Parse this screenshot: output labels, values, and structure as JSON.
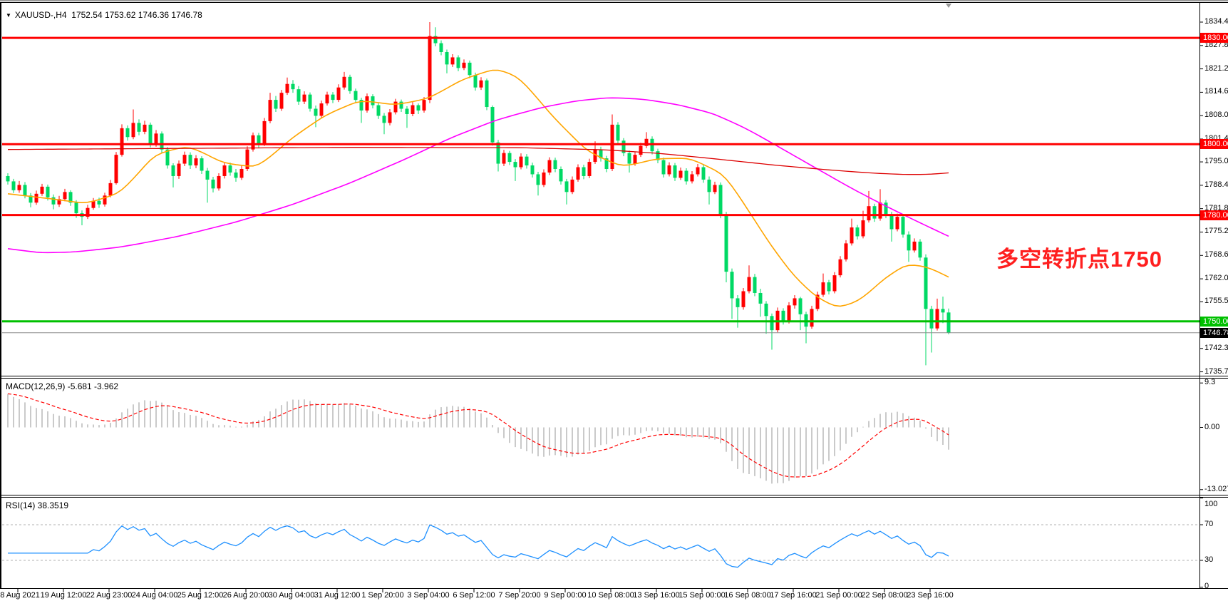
{
  "title": {
    "symbol": "XAUUSD-,H4",
    "quotes": "1752.54 1753.62 1746.36 1746.78"
  },
  "icons": {
    "symbol_dropdown": "▼",
    "shift_marker": "▼"
  },
  "annotation": {
    "text": "多空转折点1750",
    "color": "#FF1F1F"
  },
  "colors": {
    "bull": "#FF0000",
    "bear": "#00D964",
    "ma_fast": "#FFA500",
    "ma_mid": "#FF00FF",
    "ma_slow": "#DD0000",
    "hline_red": "#FF0000",
    "hline_green": "#00C000",
    "current_line": "#888888",
    "current_label_bg": "#000000",
    "macd_hist": "#BDBDBD",
    "macd_signal": "#FF0000",
    "rsi_line": "#1E90FF",
    "rsi_levels": "#B0B0B0"
  },
  "price_axis": {
    "ticks": [
      {
        "v": 1834.45,
        "t": "1834.45"
      },
      {
        "v": 1827.85,
        "t": "1827.85"
      },
      {
        "v": 1821.25,
        "t": "1821.25"
      },
      {
        "v": 1814.65,
        "t": "1814.65"
      },
      {
        "v": 1808.05,
        "t": "1808.05"
      },
      {
        "v": 1801.45,
        "t": "1801.45"
      },
      {
        "v": 1795.0,
        "t": "1795.00"
      },
      {
        "v": 1788.4,
        "t": "1788.40"
      },
      {
        "v": 1781.8,
        "t": "1781.80"
      },
      {
        "v": 1775.2,
        "t": "1775.20"
      },
      {
        "v": 1768.6,
        "t": "1768.60"
      },
      {
        "v": 1762.0,
        "t": "1762.00"
      },
      {
        "v": 1755.55,
        "t": "1755.55"
      },
      {
        "v": 1748.95,
        "t": "1748.95"
      },
      {
        "v": 1742.35,
        "t": "1742.35"
      },
      {
        "v": 1735.75,
        "t": "1735.75"
      }
    ],
    "current_price": {
      "v": 1746.78,
      "t": "1746.78"
    }
  },
  "time_axis": {
    "labels": [
      "18 Aug 2021",
      "19 Aug 12:00",
      "22 Aug 23:00",
      "24 Aug 04:00",
      "25 Aug 12:00",
      "26 Aug 20:00",
      "30 Aug 04:00",
      "31 Aug 12:00",
      "1 Sep 20:00",
      "3 Sep 04:00",
      "6 Sep 12:00",
      "7 Sep 20:00",
      "9 Sep 00:00",
      "10 Sep 08:00",
      "13 Sep 16:00",
      "15 Sep 00:00",
      "16 Sep 08:00",
      "17 Sep 16:00",
      "21 Sep 00:00",
      "22 Sep 08:00",
      "23 Sep 16:00"
    ]
  },
  "indicators": {
    "macd": {
      "label": "MACD(12,26,9) -5.681 -3.962",
      "value": -5.681,
      "signal_value": -3.962,
      "axis": [
        {
          "v": 9.3,
          "t": "9.3"
        },
        {
          "v": 0,
          "t": "0.00"
        },
        {
          "v": -13.027,
          "t": "-13.027"
        }
      ]
    },
    "rsi": {
      "label": "RSI(14) 38.3519",
      "value": 38.3519,
      "levels": [
        70,
        30
      ],
      "axis": [
        {
          "v": 100,
          "t": "100"
        },
        {
          "v": 70,
          "t": "70"
        },
        {
          "v": 30,
          "t": "30"
        },
        {
          "v": 0,
          "t": "0"
        }
      ]
    }
  },
  "chart_data": {
    "type": "candlestick",
    "symbol": "XAUUSD",
    "timeframe": "H4",
    "title": "XAUUSD-,H4",
    "color_convention": "chinese: red = bullish, green = bearish",
    "ylim": [
      1735.75,
      1834.45
    ],
    "grid": false,
    "open_rule": "previous_close",
    "first_open": 1791.0,
    "candles_hlc": [
      [
        1791.8,
        1788.6,
        1789.5
      ],
      [
        1790.2,
        1786.2,
        1787.0
      ],
      [
        1789.6,
        1786.3,
        1788.5
      ],
      [
        1789.3,
        1784.7,
        1785.5
      ],
      [
        1786.2,
        1782.2,
        1783.5
      ],
      [
        1786.9,
        1782.9,
        1786.0
      ],
      [
        1788.8,
        1785.4,
        1788.0
      ],
      [
        1788.6,
        1784.1,
        1785.0
      ],
      [
        1785.8,
        1781.6,
        1783.0
      ],
      [
        1785.4,
        1782.3,
        1784.5
      ],
      [
        1787.4,
        1783.9,
        1786.5
      ],
      [
        1787.0,
        1782.6,
        1783.5
      ],
      [
        1784.2,
        1779.2,
        1780.5
      ],
      [
        1781.3,
        1777.1,
        1779.5
      ],
      [
        1782.9,
        1778.9,
        1782.0
      ],
      [
        1784.8,
        1781.5,
        1784.0
      ],
      [
        1784.9,
        1782.0,
        1783.0
      ],
      [
        1786.3,
        1782.4,
        1785.5
      ],
      [
        1789.9,
        1785.0,
        1789.0
      ],
      [
        1797.8,
        1788.6,
        1797.0
      ],
      [
        1805.6,
        1796.5,
        1804.5
      ],
      [
        1805.3,
        1801.0,
        1802.0
      ],
      [
        1809.8,
        1801.4,
        1806.0
      ],
      [
        1807.0,
        1802.5,
        1803.5
      ],
      [
        1806.6,
        1802.8,
        1805.5
      ],
      [
        1806.1,
        1799.1,
        1800.0
      ],
      [
        1804.0,
        1799.3,
        1803.0
      ],
      [
        1803.6,
        1797.6,
        1798.5
      ],
      [
        1799.2,
        1793.1,
        1794.0
      ],
      [
        1794.6,
        1787.8,
        1791.0
      ],
      [
        1795.4,
        1790.2,
        1794.5
      ],
      [
        1797.9,
        1793.8,
        1797.0
      ],
      [
        1797.7,
        1793.0,
        1794.0
      ],
      [
        1796.9,
        1793.2,
        1796.0
      ],
      [
        1796.6,
        1791.6,
        1792.5
      ],
      [
        1793.3,
        1783.5,
        1790.0
      ],
      [
        1790.8,
        1786.4,
        1787.5
      ],
      [
        1791.8,
        1786.9,
        1791.0
      ],
      [
        1794.9,
        1790.3,
        1794.0
      ],
      [
        1794.8,
        1791.1,
        1792.0
      ],
      [
        1793.0,
        1789.4,
        1790.5
      ],
      [
        1793.9,
        1789.9,
        1793.0
      ],
      [
        1799.4,
        1792.4,
        1798.5
      ],
      [
        1803.3,
        1797.9,
        1802.5
      ],
      [
        1803.2,
        1799.0,
        1800.0
      ],
      [
        1807.4,
        1799.5,
        1806.5
      ],
      [
        1814.5,
        1805.9,
        1812.5
      ],
      [
        1813.6,
        1809.1,
        1810.0
      ],
      [
        1815.3,
        1809.4,
        1814.5
      ],
      [
        1818.8,
        1813.9,
        1817.0
      ],
      [
        1818.1,
        1814.5,
        1815.5
      ],
      [
        1816.4,
        1811.1,
        1812.0
      ],
      [
        1814.9,
        1811.3,
        1814.0
      ],
      [
        1814.6,
        1809.2,
        1810.0
      ],
      [
        1810.9,
        1804.8,
        1808.0
      ],
      [
        1812.3,
        1807.3,
        1811.5
      ],
      [
        1814.8,
        1810.9,
        1814.0
      ],
      [
        1814.7,
        1811.6,
        1812.5
      ],
      [
        1816.9,
        1811.9,
        1816.0
      ],
      [
        1820.4,
        1815.4,
        1819.0
      ],
      [
        1819.6,
        1814.2,
        1815.0
      ],
      [
        1815.7,
        1811.6,
        1812.5
      ],
      [
        1813.1,
        1806.0,
        1809.5
      ],
      [
        1814.3,
        1808.9,
        1813.5
      ],
      [
        1814.1,
        1810.1,
        1811.0
      ],
      [
        1811.7,
        1807.1,
        1808.0
      ],
      [
        1808.8,
        1802.8,
        1806.0
      ],
      [
        1809.9,
        1805.3,
        1809.0
      ],
      [
        1812.8,
        1808.4,
        1812.0
      ],
      [
        1812.6,
        1809.1,
        1810.0
      ],
      [
        1810.7,
        1804.6,
        1808.5
      ],
      [
        1811.9,
        1807.9,
        1811.0
      ],
      [
        1811.5,
        1808.5,
        1809.5
      ],
      [
        1813.3,
        1808.9,
        1812.5
      ],
      [
        1834.45,
        1811.6,
        1830.5
      ],
      [
        1833.0,
        1827.6,
        1828.5
      ],
      [
        1829.3,
        1825.1,
        1826.0
      ],
      [
        1826.7,
        1820.0,
        1822.5
      ],
      [
        1825.4,
        1821.8,
        1824.5
      ],
      [
        1825.1,
        1820.6,
        1821.5
      ],
      [
        1823.9,
        1820.9,
        1823.0
      ],
      [
        1823.6,
        1818.6,
        1819.5
      ],
      [
        1820.2,
        1815.1,
        1816.0
      ],
      [
        1818.9,
        1815.3,
        1818.0
      ],
      [
        1818.5,
        1809.6,
        1810.5
      ],
      [
        1810.9,
        1799.6,
        1800.5
      ],
      [
        1801.2,
        1792.3,
        1794.5
      ],
      [
        1798.4,
        1793.8,
        1797.5
      ],
      [
        1798.1,
        1794.1,
        1795.0
      ],
      [
        1795.8,
        1789.6,
        1793.5
      ],
      [
        1797.4,
        1792.9,
        1796.5
      ],
      [
        1797.2,
        1793.1,
        1794.0
      ],
      [
        1794.8,
        1790.6,
        1791.5
      ],
      [
        1792.2,
        1785.5,
        1788.5
      ],
      [
        1792.9,
        1787.9,
        1792.0
      ],
      [
        1796.3,
        1791.3,
        1795.5
      ],
      [
        1796.2,
        1792.1,
        1793.0
      ],
      [
        1793.7,
        1788.6,
        1789.5
      ],
      [
        1790.2,
        1783.0,
        1786.5
      ],
      [
        1790.9,
        1785.9,
        1790.0
      ],
      [
        1794.3,
        1789.4,
        1793.5
      ],
      [
        1794.2,
        1790.1,
        1791.0
      ],
      [
        1795.9,
        1790.4,
        1795.0
      ],
      [
        1800.8,
        1794.4,
        1798.5
      ],
      [
        1799.3,
        1795.1,
        1796.0
      ],
      [
        1796.7,
        1792.1,
        1793.0
      ],
      [
        1808.4,
        1792.4,
        1805.5
      ],
      [
        1806.2,
        1800.1,
        1801.0
      ],
      [
        1801.7,
        1796.6,
        1797.5
      ],
      [
        1798.2,
        1792.0,
        1794.5
      ],
      [
        1797.9,
        1793.9,
        1797.0
      ],
      [
        1800.4,
        1796.4,
        1799.5
      ],
      [
        1803.4,
        1798.9,
        1801.5
      ],
      [
        1802.2,
        1797.1,
        1798.0
      ],
      [
        1798.7,
        1794.6,
        1795.5
      ],
      [
        1796.2,
        1790.6,
        1791.5
      ],
      [
        1794.9,
        1790.9,
        1794.0
      ],
      [
        1794.7,
        1789.6,
        1790.5
      ],
      [
        1793.4,
        1789.9,
        1792.5
      ],
      [
        1793.2,
        1788.6,
        1789.5
      ],
      [
        1792.4,
        1788.9,
        1791.5
      ],
      [
        1794.4,
        1790.9,
        1793.5
      ],
      [
        1794.2,
        1789.1,
        1790.0
      ],
      [
        1790.9,
        1783.0,
        1786.5
      ],
      [
        1789.4,
        1785.9,
        1788.5
      ],
      [
        1789.2,
        1779.1,
        1780.0
      ],
      [
        1780.9,
        1761.0,
        1764.0
      ],
      [
        1764.9,
        1750.7,
        1756.5
      ],
      [
        1757.4,
        1748.2,
        1754.0
      ],
      [
        1759.4,
        1753.3,
        1758.5
      ],
      [
        1765.8,
        1757.9,
        1762.5
      ],
      [
        1763.4,
        1757.1,
        1758.0
      ],
      [
        1759.2,
        1751.3,
        1755.0
      ],
      [
        1755.7,
        1746.5,
        1751.5
      ],
      [
        1752.2,
        1742.0,
        1747.5
      ],
      [
        1753.9,
        1746.9,
        1753.0
      ],
      [
        1753.7,
        1749.1,
        1750.0
      ],
      [
        1755.4,
        1749.4,
        1754.5
      ],
      [
        1757.4,
        1753.6,
        1756.5
      ],
      [
        1756.9,
        1747.5,
        1752.0
      ],
      [
        1752.7,
        1743.8,
        1748.5
      ],
      [
        1754.4,
        1747.9,
        1753.5
      ],
      [
        1758.4,
        1752.9,
        1757.5
      ],
      [
        1763.5,
        1756.9,
        1761.0
      ],
      [
        1761.7,
        1757.6,
        1758.5
      ],
      [
        1763.9,
        1757.9,
        1763.0
      ],
      [
        1768.4,
        1762.4,
        1767.5
      ],
      [
        1772.9,
        1766.9,
        1772.0
      ],
      [
        1779.0,
        1771.4,
        1776.5
      ],
      [
        1777.2,
        1773.1,
        1774.0
      ],
      [
        1781.2,
        1773.4,
        1778.5
      ],
      [
        1786.8,
        1777.9,
        1782.5
      ],
      [
        1783.2,
        1778.1,
        1779.0
      ],
      [
        1787.3,
        1778.4,
        1783.5
      ],
      [
        1784.2,
        1779.1,
        1780.0
      ],
      [
        1780.9,
        1772.5,
        1776.0
      ],
      [
        1780.4,
        1775.4,
        1779.5
      ],
      [
        1780.2,
        1773.6,
        1774.5
      ],
      [
        1775.4,
        1766.8,
        1770.0
      ],
      [
        1773.4,
        1769.4,
        1772.5
      ],
      [
        1773.2,
        1767.1,
        1768.0
      ],
      [
        1768.9,
        1737.6,
        1753.5
      ],
      [
        1754.4,
        1741.2,
        1748.0
      ],
      [
        1756.4,
        1747.4,
        1753.5
      ],
      [
        1757.0,
        1749.5,
        1752.5
      ],
      [
        1753.62,
        1746.36,
        1746.78
      ]
    ],
    "hlines": [
      {
        "value": 1830.0,
        "label": "1830.00",
        "color": "#FF0000"
      },
      {
        "value": 1800.0,
        "label": "1800.00",
        "color": "#FF0000"
      },
      {
        "value": 1780.0,
        "label": "1780.00",
        "color": "#FF0000"
      },
      {
        "value": 1750.0,
        "label": "1750.00",
        "color": "#00C000"
      }
    ],
    "moving_averages": [
      {
        "name": "ma-fast-orange",
        "color": "#FFA500",
        "width": 1.6,
        "points": [
          [
            0,
            1786
          ],
          [
            8,
            1784.5
          ],
          [
            14,
            1783.2
          ],
          [
            20,
            1786.5
          ],
          [
            26,
            1797.5
          ],
          [
            32,
            1799.5
          ],
          [
            38,
            1794.5
          ],
          [
            44,
            1793.5
          ],
          [
            50,
            1802
          ],
          [
            56,
            1808.5
          ],
          [
            62,
            1812.5
          ],
          [
            68,
            1811
          ],
          [
            74,
            1813
          ],
          [
            80,
            1818.5
          ],
          [
            86,
            1821.5
          ],
          [
            90,
            1818.5
          ],
          [
            96,
            1807
          ],
          [
            102,
            1797.5
          ],
          [
            108,
            1793.5
          ],
          [
            114,
            1796
          ],
          [
            120,
            1796
          ],
          [
            126,
            1791
          ],
          [
            130,
            1781
          ],
          [
            134,
            1771
          ],
          [
            138,
            1762.5
          ],
          [
            142,
            1756.5
          ],
          [
            146,
            1753.5
          ],
          [
            150,
            1756.5
          ],
          [
            154,
            1762.5
          ],
          [
            158,
            1766.5
          ],
          [
            162,
            1765
          ],
          [
            165,
            1762.5
          ]
        ]
      },
      {
        "name": "ma-mid-magenta",
        "color": "#FF00FF",
        "width": 1.6,
        "points": [
          [
            0,
            1770.5
          ],
          [
            6,
            1769.3
          ],
          [
            12,
            1769.6
          ],
          [
            20,
            1771
          ],
          [
            30,
            1774
          ],
          [
            40,
            1778
          ],
          [
            50,
            1783
          ],
          [
            60,
            1789
          ],
          [
            70,
            1796
          ],
          [
            78,
            1802
          ],
          [
            86,
            1807
          ],
          [
            94,
            1810.5
          ],
          [
            100,
            1812.3
          ],
          [
            106,
            1813.2
          ],
          [
            112,
            1812.6
          ],
          [
            118,
            1811
          ],
          [
            124,
            1808.5
          ],
          [
            130,
            1804
          ],
          [
            136,
            1798.5
          ],
          [
            142,
            1793
          ],
          [
            148,
            1787.5
          ],
          [
            154,
            1782.5
          ],
          [
            160,
            1777.8
          ],
          [
            165,
            1774
          ]
        ]
      },
      {
        "name": "ma-slow-darkred",
        "color": "#DD0000",
        "width": 1.3,
        "points": [
          [
            0,
            1798.5
          ],
          [
            30,
            1798.8
          ],
          [
            60,
            1799.1
          ],
          [
            90,
            1799.0
          ],
          [
            105,
            1798.4
          ],
          [
            115,
            1797.3
          ],
          [
            125,
            1795.7
          ],
          [
            135,
            1794.0
          ],
          [
            145,
            1792.6
          ],
          [
            152,
            1791.8
          ],
          [
            158,
            1791.4
          ],
          [
            162,
            1791.5
          ],
          [
            165,
            1791.9
          ]
        ]
      }
    ],
    "macd_params": {
      "fast": 12,
      "slow": 26,
      "signal": 9
    },
    "rsi_params": {
      "period": 14
    }
  }
}
